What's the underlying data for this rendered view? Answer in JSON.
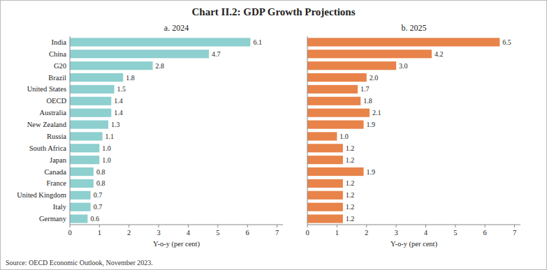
{
  "title": "Chart II.2: GDP Growth Projections",
  "source": "Source: OECD Economic Outlook, November 2023.",
  "chart_data": [
    {
      "type": "bar",
      "orientation": "horizontal",
      "title": "a. 2024",
      "xlabel": "Y-o-y (per cent)",
      "categories": [
        "India",
        "China",
        "G20",
        "Brazil",
        "United States",
        "OECD",
        "Australia",
        "New Zealand",
        "Russia",
        "South Africa",
        "Japan",
        "Canada",
        "France",
        "United Kingdom",
        "Italy",
        "Germany"
      ],
      "values": [
        6.1,
        4.7,
        2.8,
        1.8,
        1.5,
        1.4,
        1.4,
        1.3,
        1.1,
        1.0,
        1.0,
        0.8,
        0.8,
        0.7,
        0.7,
        0.6
      ],
      "value_labels": [
        "6.1",
        "4.7",
        "2.8",
        "1.8",
        "1.5",
        "1.4",
        "1.4",
        "1.3",
        "1.1",
        "1.0",
        "1.0",
        "0.8",
        "0.8",
        "0.7",
        "0.7",
        "0.6"
      ],
      "color": "#8ecfcf",
      "xlim": [
        0,
        7.2
      ],
      "xticks": [
        0,
        1,
        2,
        3,
        4,
        5,
        6,
        7
      ],
      "data_labels": true,
      "grid": false
    },
    {
      "type": "bar",
      "orientation": "horizontal",
      "title": "b. 2025",
      "xlabel": "Y-o-y (per cent)",
      "categories": [
        "India",
        "China",
        "G20",
        "Brazil",
        "United States",
        "OECD",
        "Australia",
        "New Zealand",
        "Russia",
        "South Africa",
        "Japan",
        "Canada",
        "France",
        "United Kingdom",
        "Italy",
        "Germany"
      ],
      "values": [
        6.5,
        4.2,
        3.0,
        2.0,
        1.7,
        1.8,
        2.1,
        1.9,
        1.0,
        1.2,
        1.2,
        1.9,
        1.2,
        1.2,
        1.2,
        1.2
      ],
      "value_labels": [
        "6.5",
        "4.2",
        "3.0",
        "2.0",
        "1.7",
        "1.8",
        "2.1",
        "1.9",
        "1.0",
        "1.2",
        "1.2",
        "1.9",
        "1.2",
        "1.2",
        "1.2",
        "1.2"
      ],
      "color": "#e8834a",
      "xlim": [
        0,
        7.2
      ],
      "xticks": [
        0,
        1,
        2,
        3,
        4,
        5,
        6,
        7
      ],
      "data_labels": true,
      "grid": false,
      "tick_labels": "x"
    }
  ]
}
